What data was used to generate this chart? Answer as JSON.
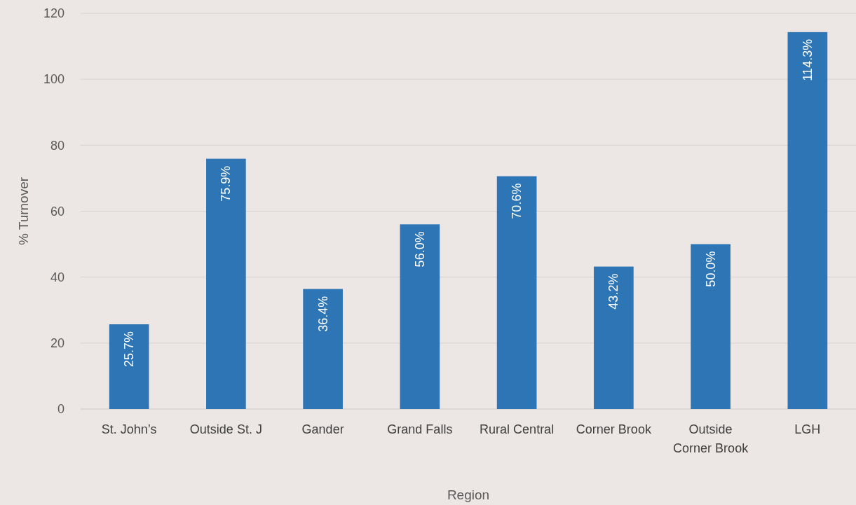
{
  "chart_data": {
    "type": "bar",
    "xlabel": "Region",
    "ylabel": "% Turnover",
    "categories": [
      "St. John’s",
      "Outside St. J",
      "Gander",
      "Grand Falls",
      "Rural Central",
      "Corner Brook",
      "Outside Corner Brook",
      "LGH"
    ],
    "values": [
      25.7,
      75.9,
      36.4,
      56.0,
      70.6,
      43.2,
      50.0,
      114.3
    ],
    "value_labels": [
      "25.7%",
      "75.9%",
      "36.4%",
      "56.0%",
      "70.6%",
      "43.2%",
      "50.0%",
      "114.3%"
    ],
    "color": "#2e75b6",
    "ylim": [
      0,
      120
    ],
    "yticks": [
      0,
      20,
      40,
      60,
      80,
      100,
      120
    ],
    "grid": "y"
  }
}
